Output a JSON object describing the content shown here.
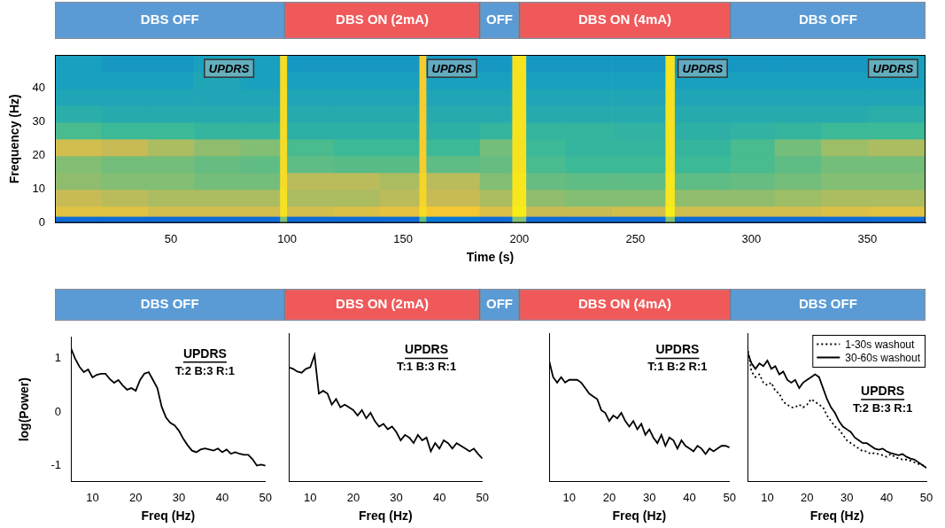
{
  "chart_data": [
    {
      "type": "timeline",
      "tick_labels": false,
      "xlim": [
        0,
        375
      ],
      "phases": [
        {
          "label": "DBS OFF",
          "start": 0,
          "end": 99,
          "color": "#5b9bd5"
        },
        {
          "label": "DBS ON (2mA)",
          "start": 99,
          "end": 183,
          "color": "#f0595a"
        },
        {
          "label": "OFF",
          "start": 183,
          "end": 200,
          "color": "#5b9bd5"
        },
        {
          "label": "DBS ON (4mA)",
          "start": 200,
          "end": 291,
          "color": "#f0595a"
        },
        {
          "label": "DBS OFF",
          "start": 291,
          "end": 375,
          "color": "#5b9bd5"
        }
      ]
    },
    {
      "type": "heatmap",
      "x_label": "Time (s)",
      "y_label": "Frequency (Hz)",
      "xlim": [
        0,
        375
      ],
      "ylim": [
        0,
        50
      ],
      "xticks": [
        50,
        100,
        150,
        200,
        250,
        300,
        350
      ],
      "yticks": [
        0,
        10,
        20,
        30,
        40
      ],
      "zlim": [
        0,
        1
      ],
      "time_edges": [
        0,
        20,
        40,
        60,
        80,
        97,
        100,
        120,
        140,
        157,
        160,
        183,
        197,
        203,
        220,
        240,
        263,
        267,
        291,
        310,
        330,
        350,
        375
      ],
      "freq_edges": [
        0,
        2,
        5,
        10,
        15,
        20,
        25,
        30,
        35,
        40,
        45,
        50
      ],
      "cells": [
        [
          0.25,
          0.75,
          0.7,
          0.62,
          0.6,
          0.72,
          0.52,
          0.45,
          0.42,
          0.4,
          0.4
        ],
        [
          0.25,
          0.75,
          0.68,
          0.6,
          0.58,
          0.7,
          0.5,
          0.44,
          0.42,
          0.4,
          0.38
        ],
        [
          0.25,
          0.72,
          0.66,
          0.6,
          0.58,
          0.66,
          0.5,
          0.44,
          0.42,
          0.4,
          0.38
        ],
        [
          0.25,
          0.72,
          0.66,
          0.58,
          0.56,
          0.62,
          0.48,
          0.44,
          0.42,
          0.42,
          0.4
        ],
        [
          0.25,
          0.72,
          0.66,
          0.58,
          0.55,
          0.6,
          0.48,
          0.44,
          0.42,
          0.4,
          0.4
        ],
        [
          0.6,
          0.9,
          0.9,
          0.88,
          0.88,
          0.88,
          0.88,
          0.88,
          0.88,
          0.88,
          0.88
        ],
        [
          0.25,
          0.72,
          0.66,
          0.68,
          0.55,
          0.52,
          0.46,
          0.44,
          0.42,
          0.4,
          0.38
        ],
        [
          0.25,
          0.74,
          0.66,
          0.68,
          0.54,
          0.5,
          0.46,
          0.44,
          0.42,
          0.4,
          0.38
        ],
        [
          0.25,
          0.76,
          0.68,
          0.66,
          0.54,
          0.5,
          0.46,
          0.44,
          0.42,
          0.4,
          0.38
        ],
        [
          0.55,
          0.88,
          0.85,
          0.85,
          0.82,
          0.82,
          0.82,
          0.82,
          0.82,
          0.82,
          0.82
        ],
        [
          0.3,
          0.8,
          0.7,
          0.68,
          0.55,
          0.5,
          0.46,
          0.44,
          0.42,
          0.4,
          0.38
        ],
        [
          0.25,
          0.74,
          0.66,
          0.6,
          0.56,
          0.58,
          0.48,
          0.44,
          0.42,
          0.4,
          0.38
        ],
        [
          0.6,
          0.95,
          0.92,
          0.92,
          0.9,
          0.9,
          0.9,
          0.9,
          0.9,
          0.9,
          0.9
        ],
        [
          0.25,
          0.7,
          0.62,
          0.56,
          0.52,
          0.5,
          0.48,
          0.44,
          0.42,
          0.4,
          0.38
        ],
        [
          0.25,
          0.7,
          0.6,
          0.55,
          0.5,
          0.48,
          0.48,
          0.44,
          0.42,
          0.4,
          0.38
        ],
        [
          0.25,
          0.72,
          0.6,
          0.55,
          0.5,
          0.48,
          0.47,
          0.44,
          0.42,
          0.4,
          0.38
        ],
        [
          0.6,
          0.95,
          0.92,
          0.92,
          0.9,
          0.9,
          0.9,
          0.9,
          0.9,
          0.9,
          0.9
        ],
        [
          0.25,
          0.72,
          0.62,
          0.55,
          0.5,
          0.48,
          0.46,
          0.44,
          0.42,
          0.4,
          0.38
        ],
        [
          0.25,
          0.72,
          0.62,
          0.56,
          0.52,
          0.52,
          0.47,
          0.44,
          0.42,
          0.4,
          0.38
        ],
        [
          0.25,
          0.72,
          0.64,
          0.58,
          0.55,
          0.58,
          0.48,
          0.44,
          0.42,
          0.4,
          0.38
        ],
        [
          0.25,
          0.74,
          0.66,
          0.6,
          0.58,
          0.64,
          0.5,
          0.44,
          0.42,
          0.4,
          0.38
        ],
        [
          0.25,
          0.75,
          0.66,
          0.6,
          0.58,
          0.66,
          0.5,
          0.45,
          0.42,
          0.4,
          0.4
        ]
      ],
      "annotations": [
        {
          "text": "UPDRS",
          "x": 75,
          "y": 46
        },
        {
          "text": "UPDRS",
          "x": 171,
          "y": 46
        },
        {
          "text": "UPDRS",
          "x": 279,
          "y": 46
        },
        {
          "text": "UPDRS",
          "x": 361,
          "y": 46
        }
      ]
    },
    {
      "type": "timeline",
      "tick_labels": false,
      "xlim": [
        0,
        375
      ],
      "phases": [
        {
          "label": "DBS OFF",
          "start": 0,
          "end": 99,
          "color": "#5b9bd5"
        },
        {
          "label": "DBS ON (2mA)",
          "start": 99,
          "end": 183,
          "color": "#f0595a"
        },
        {
          "label": "OFF",
          "start": 183,
          "end": 200,
          "color": "#5b9bd5"
        },
        {
          "label": "DBS ON (4mA)",
          "start": 200,
          "end": 291,
          "color": "#f0595a"
        },
        {
          "label": "DBS OFF",
          "start": 291,
          "end": 375,
          "color": "#5b9bd5"
        }
      ]
    },
    {
      "type": "line",
      "x_label": "Freq (Hz)",
      "y_label": "log(Power)",
      "xlim": [
        5,
        50
      ],
      "ylim": [
        -1.3,
        1.4
      ],
      "xticks": [
        10,
        20,
        30,
        40,
        50
      ],
      "yticks": [
        -1,
        0,
        1
      ],
      "x": [
        5,
        6,
        7,
        8,
        9,
        10,
        11,
        12,
        13,
        14,
        15,
        16,
        17,
        18,
        19,
        20,
        21,
        22,
        23,
        24,
        25,
        26,
        27,
        28,
        29,
        30,
        31,
        32,
        33,
        34,
        35,
        36,
        37,
        38,
        39,
        40,
        41,
        42,
        43,
        44,
        45,
        46,
        47,
        48,
        49,
        50
      ],
      "series": [
        {
          "color": "#000000",
          "line_style": "solid",
          "values": [
            1.2,
            1.0,
            0.85,
            0.75,
            0.8,
            0.65,
            0.7,
            0.72,
            0.72,
            0.62,
            0.55,
            0.6,
            0.5,
            0.42,
            0.45,
            0.4,
            0.6,
            0.72,
            0.75,
            0.6,
            0.45,
            0.1,
            -0.1,
            -0.2,
            -0.25,
            -0.35,
            -0.5,
            -0.62,
            -0.72,
            -0.75,
            -0.7,
            -0.68,
            -0.7,
            -0.72,
            -0.68,
            -0.75,
            -0.7,
            -0.78,
            -0.75,
            -0.78,
            -0.8,
            -0.8,
            -0.88,
            -1.0,
            -0.98,
            -1.0
          ]
        }
      ],
      "annotations": [
        {
          "title": "UPDRS",
          "text": "T:2 B:3 R:1",
          "x": 36,
          "y": 1.2
        }
      ]
    },
    {
      "type": "line",
      "x_label": "Freq (Hz)",
      "tick_labels": "x",
      "xlim": [
        5,
        50
      ],
      "ylim": [
        -1.3,
        1.4
      ],
      "xticks": [
        10,
        20,
        30,
        40,
        50
      ],
      "yticks": [
        -1,
        0,
        1
      ],
      "x": [
        5,
        6,
        7,
        8,
        9,
        10,
        11,
        12,
        13,
        14,
        15,
        16,
        17,
        18,
        19,
        20,
        21,
        22,
        23,
        24,
        25,
        26,
        27,
        28,
        29,
        30,
        31,
        32,
        33,
        34,
        35,
        36,
        37,
        38,
        39,
        40,
        41,
        42,
        43,
        44,
        45,
        46,
        47,
        48,
        49,
        50
      ],
      "series": [
        {
          "color": "#000000",
          "line_style": "solid",
          "values": [
            0.78,
            0.75,
            0.7,
            0.68,
            0.75,
            0.78,
            1.0,
            0.3,
            0.35,
            0.3,
            0.1,
            0.2,
            0.05,
            0.1,
            0.05,
            0.0,
            -0.1,
            0.0,
            -0.15,
            -0.05,
            -0.2,
            -0.3,
            -0.25,
            -0.35,
            -0.3,
            -0.4,
            -0.55,
            -0.45,
            -0.5,
            -0.6,
            -0.45,
            -0.55,
            -0.5,
            -0.75,
            -0.6,
            -0.7,
            -0.55,
            -0.6,
            -0.7,
            -0.6,
            -0.65,
            -0.7,
            -0.75,
            -0.7,
            -0.8,
            -0.88
          ]
        }
      ],
      "annotations": [
        {
          "title": "UPDRS",
          "text": "T:1 B:3 R:1",
          "x": 37,
          "y": 1.2
        }
      ]
    },
    {
      "type": "line",
      "x_label": "Freq (Hz)",
      "tick_labels": "x",
      "xlim": [
        5,
        50
      ],
      "ylim": [
        -1.3,
        1.4
      ],
      "xticks": [
        10,
        20,
        30,
        40,
        50
      ],
      "yticks": [
        -1,
        0,
        1
      ],
      "x": [
        5,
        6,
        7,
        8,
        9,
        10,
        11,
        12,
        13,
        14,
        15,
        16,
        17,
        18,
        19,
        20,
        21,
        22,
        23,
        24,
        25,
        26,
        27,
        28,
        29,
        30,
        31,
        32,
        33,
        34,
        35,
        36,
        37,
        38,
        39,
        40,
        41,
        42,
        43,
        44,
        45,
        46,
        47,
        48,
        49,
        50
      ],
      "series": [
        {
          "color": "#000000",
          "line_style": "solid",
          "values": [
            0.9,
            0.6,
            0.5,
            0.6,
            0.5,
            0.55,
            0.55,
            0.55,
            0.5,
            0.4,
            0.3,
            0.25,
            0.2,
            0.0,
            -0.05,
            -0.2,
            -0.1,
            -0.15,
            -0.05,
            -0.2,
            -0.3,
            -0.2,
            -0.35,
            -0.25,
            -0.45,
            -0.35,
            -0.5,
            -0.6,
            -0.45,
            -0.65,
            -0.5,
            -0.55,
            -0.7,
            -0.55,
            -0.65,
            -0.7,
            -0.75,
            -0.65,
            -0.7,
            -0.8,
            -0.7,
            -0.75,
            -0.7,
            -0.65,
            -0.65,
            -0.68
          ]
        }
      ],
      "annotations": [
        {
          "title": "UPDRS",
          "text": "T:1 B:2 R:1",
          "x": 37,
          "y": 1.2
        }
      ]
    },
    {
      "type": "line",
      "x_label": "Freq (Hz)",
      "tick_labels": "x",
      "legend": "upper right",
      "xlim": [
        5,
        50
      ],
      "ylim": [
        -1.3,
        1.4
      ],
      "xticks": [
        10,
        20,
        30,
        40,
        50
      ],
      "yticks": [
        -1,
        0,
        1
      ],
      "x": [
        5,
        6,
        7,
        8,
        9,
        10,
        11,
        12,
        13,
        14,
        15,
        16,
        17,
        18,
        19,
        20,
        21,
        22,
        23,
        24,
        25,
        26,
        27,
        28,
        29,
        30,
        31,
        32,
        33,
        34,
        35,
        36,
        37,
        38,
        39,
        40,
        41,
        42,
        43,
        44,
        45,
        46,
        47,
        48,
        49,
        50
      ],
      "series": [
        {
          "name": "1-30s washout",
          "color": "#000000",
          "line_style": "dotted",
          "values": [
            1.15,
            0.7,
            0.6,
            0.65,
            0.5,
            0.45,
            0.5,
            0.35,
            0.3,
            0.15,
            0.1,
            0.05,
            0.05,
            0.1,
            0.05,
            0.1,
            0.2,
            0.15,
            0.1,
            0.05,
            -0.1,
            -0.2,
            -0.3,
            -0.35,
            -0.45,
            -0.55,
            -0.6,
            -0.65,
            -0.7,
            -0.75,
            -0.75,
            -0.8,
            -0.78,
            -0.8,
            -0.82,
            -0.85,
            -0.8,
            -0.85,
            -0.88,
            -0.9,
            -0.9,
            -0.92,
            -0.95,
            -0.98,
            -1.0,
            -1.05
          ]
        },
        {
          "name": "30-60s washout",
          "color": "#000000",
          "line_style": "solid",
          "values": [
            1.05,
            0.85,
            0.75,
            0.85,
            0.8,
            0.9,
            0.75,
            0.8,
            0.65,
            0.7,
            0.55,
            0.5,
            0.55,
            0.4,
            0.5,
            0.55,
            0.6,
            0.65,
            0.6,
            0.4,
            0.2,
            0.05,
            -0.05,
            -0.2,
            -0.3,
            -0.35,
            -0.4,
            -0.5,
            -0.55,
            -0.6,
            -0.6,
            -0.65,
            -0.7,
            -0.72,
            -0.7,
            -0.75,
            -0.78,
            -0.8,
            -0.82,
            -0.8,
            -0.85,
            -0.88,
            -0.9,
            -0.95,
            -1.0,
            -1.05
          ]
        }
      ],
      "annotations": [
        {
          "title": "UPDRS",
          "text": "T:2 B:3 R:1",
          "x": 39,
          "y": 0.45
        }
      ]
    }
  ]
}
